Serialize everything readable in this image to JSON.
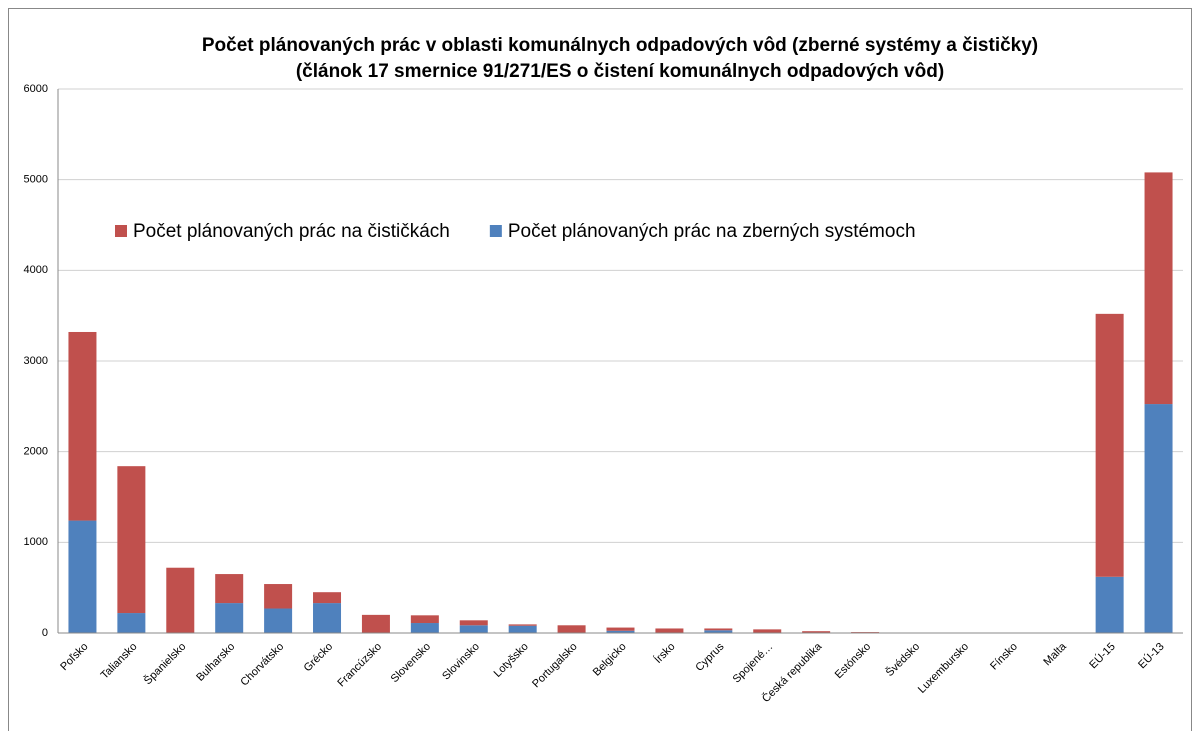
{
  "chart_data": {
    "type": "stacked_bar",
    "title": "Počet plánovaných prác v oblasti komunálnych odpadových vôd (zberné systémy a čističky)",
    "subtitle": "(článok 17 smernice 91/271/ES o čistení komunálnych odpadových vôd)",
    "categories": [
      "Poľsko",
      "Taliansko",
      "Španielsko",
      "Bulharsko",
      "Chorvátsko",
      "Grécko",
      "Francúzsko",
      "Slovensko",
      "Slovinsko",
      "Lotyšsko",
      "Portugalsko",
      "Belgicko",
      "Írsko",
      "Cyprus",
      "Spojené…",
      "Česká republika",
      "Estónsko",
      "Švédsko",
      "Luxembursko",
      "Fínsko",
      "Malta",
      "EÚ-15",
      "EÚ-13"
    ],
    "series": [
      {
        "name": "Počet plánovaných prác na zberných systémoch",
        "color": "#4f81bd",
        "values": [
          1240,
          220,
          0,
          330,
          270,
          330,
          0,
          110,
          85,
          80,
          0,
          25,
          5,
          30,
          0,
          0,
          5,
          0,
          0,
          0,
          0,
          620,
          2525
        ]
      },
      {
        "name": "Počet plánovaných prác na čističkách",
        "color": "#c0504d",
        "values": [
          2080,
          1620,
          720,
          320,
          270,
          120,
          200,
          85,
          55,
          15,
          85,
          35,
          45,
          20,
          40,
          20,
          5,
          5,
          0,
          0,
          0,
          2900,
          2555
        ]
      }
    ],
    "ylim": [
      0,
      6000
    ],
    "yticks": [
      0,
      1000,
      2000,
      3000,
      4000,
      5000,
      6000
    ],
    "grid": true
  }
}
